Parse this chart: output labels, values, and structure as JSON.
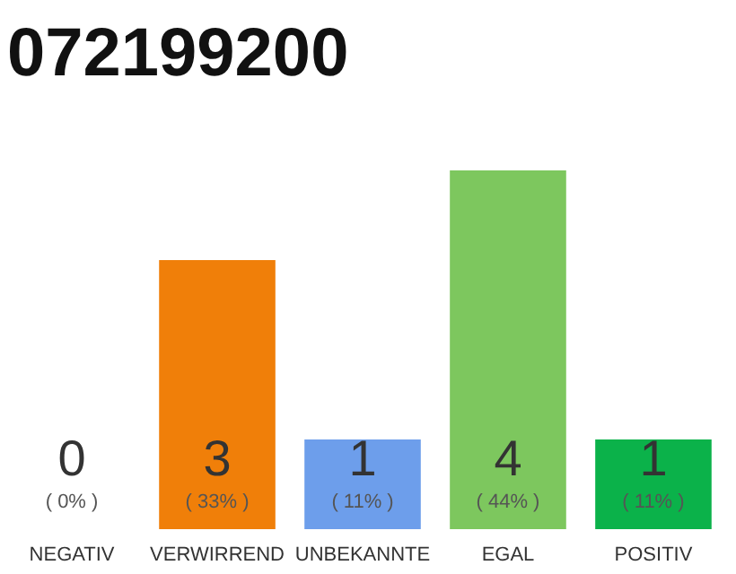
{
  "chart_data": {
    "type": "bar",
    "title": "072199200",
    "categories": [
      "NEGATIV",
      "VERWIRREND",
      "UNBEKANNTE",
      "EGAL",
      "POSITIV"
    ],
    "values": [
      0,
      33,
      11,
      44,
      11
    ],
    "colors": [
      "#999999",
      "#f07f09",
      "#6d9eeb",
      "#7dc75e",
      "#0bb24a"
    ],
    "value_labels": [
      "( 0% )",
      "( 33% )",
      "( 11% )",
      "( 44% )",
      "( 11% )"
    ],
    "annotations": [
      "0",
      "3",
      "1",
      "4",
      "1"
    ],
    "tick_labels": "x"
  }
}
